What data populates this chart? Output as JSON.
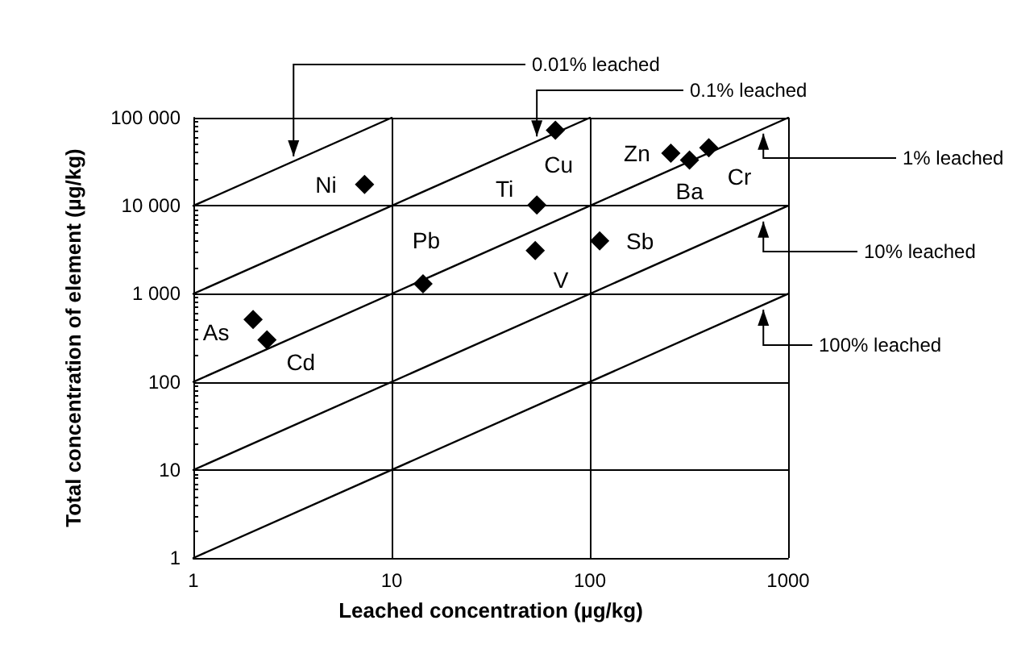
{
  "chart_data": {
    "type": "scatter",
    "xlabel": "Leached concentration (µg/kg)",
    "ylabel": "Total concentration of element (µg/kg)",
    "log": "xy",
    "xlim": [
      1,
      1000
    ],
    "ylim": [
      1,
      100000
    ],
    "xticks": [
      1,
      10,
      100,
      1000
    ],
    "yticks": [
      1,
      10,
      {
        "value": 100,
        "label": "100"
      },
      {
        "value": 1000,
        "label": "1 000"
      },
      {
        "value": 10000,
        "label": "10 000"
      },
      {
        "value": 100000,
        "label": "100 000"
      }
    ],
    "grid": true,
    "legend": false,
    "series": [
      {
        "marker": "diamond",
        "color": "#000000",
        "x": [
          7.3,
          67,
          54,
          14.4,
          53,
          2.0,
          2.35,
          112,
          256,
          318,
          398
        ],
        "values": [
          17500,
          72000,
          10200,
          1300,
          3100,
          510,
          300,
          4000,
          39500,
          33000,
          45700
        ]
      },
      {
        "type": "line",
        "marker": "none",
        "name": "0.01% leached",
        "color": "#000000",
        "x": [
          1,
          10
        ],
        "values": [
          10000,
          100000
        ]
      },
      {
        "type": "line",
        "marker": "none",
        "name": "0.1% leached",
        "color": "#000000",
        "x": [
          1,
          100
        ],
        "values": [
          1000,
          100000
        ]
      },
      {
        "type": "line",
        "marker": "none",
        "name": "1% leached",
        "color": "#000000",
        "x": [
          1,
          1000
        ],
        "values": [
          100,
          100000
        ]
      },
      {
        "type": "line",
        "marker": "none",
        "name": "10% leached",
        "color": "#000000",
        "x": [
          1,
          1000
        ],
        "values": [
          10,
          10000
        ]
      },
      {
        "type": "line",
        "marker": "none",
        "name": "100% leached",
        "color": "#000000",
        "x": [
          1,
          1000
        ],
        "values": [
          1,
          1000
        ]
      }
    ],
    "annotations": [
      {
        "text": "Ni",
        "x": 7.3,
        "y": 17500
      },
      {
        "text": "Cu",
        "x": 67,
        "y": 72000
      },
      {
        "text": "Ti",
        "x": 54,
        "y": 10200
      },
      {
        "text": "Pb",
        "x": 14.4,
        "y": 1300
      },
      {
        "text": "V",
        "x": 53,
        "y": 3100
      },
      {
        "text": "As",
        "x": 2.0,
        "y": 510
      },
      {
        "text": "Cd",
        "x": 2.35,
        "y": 300
      },
      {
        "text": "Sb",
        "x": 112,
        "y": 4000
      },
      {
        "text": "Zn",
        "x": 256,
        "y": 39500
      },
      {
        "text": "Ba",
        "x": 318,
        "y": 33000
      },
      {
        "text": "Cr",
        "x": 398,
        "y": 45700
      }
    ]
  }
}
